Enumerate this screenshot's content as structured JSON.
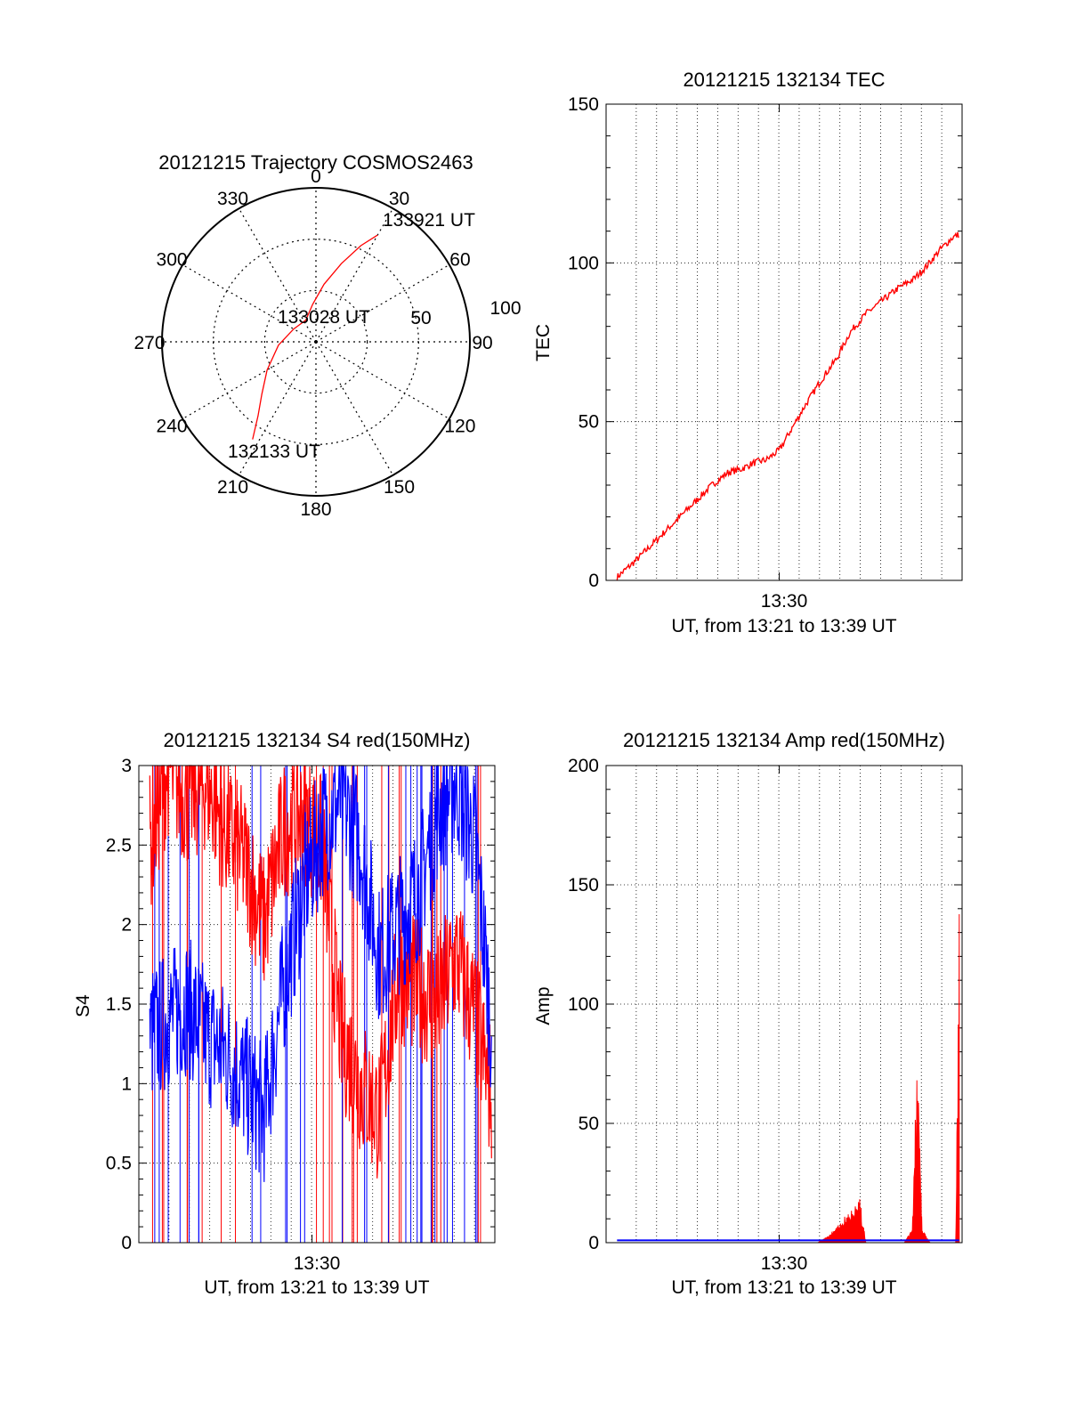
{
  "chart_data": [
    {
      "type": "polar",
      "title": "20121215 Trajectory COSMOS2463",
      "azimuth_labels": [
        "0",
        "30",
        "60",
        "90",
        "120",
        "150",
        "180",
        "210",
        "240",
        "270",
        "300",
        "330"
      ],
      "elevation_labels": [
        "50",
        "100"
      ],
      "track": {
        "color": "#ff0000",
        "start_label": "132133 UT",
        "mid_label": "133028 UT",
        "end_label": "133921 UT",
        "points_az_zen": [
          [
            213,
            68
          ],
          [
            218,
            55
          ],
          [
            226,
            44
          ],
          [
            240,
            33
          ],
          [
            265,
            22
          ],
          [
            300,
            15
          ],
          [
            335,
            14
          ],
          [
            355,
            22
          ],
          [
            8,
            34
          ],
          [
            18,
            48
          ],
          [
            25,
            62
          ],
          [
            30,
            72
          ]
        ]
      }
    },
    {
      "type": "line",
      "title": "20121215 132134 TEC",
      "ylabel": "TEC",
      "xlabel": "UT, from 13:21 to 13:39 UT",
      "x_tick_label": "13:30",
      "ylim": [
        0,
        150
      ],
      "y_ticks": [
        "0",
        "50",
        "100",
        "150"
      ],
      "series": [
        {
          "color": "#ff0000",
          "x": [
            "13:21:34",
            "13:22:30",
            "13:23:30",
            "13:24:30",
            "13:25:30",
            "13:26:30",
            "13:27:20",
            "13:28:00",
            "13:28:40",
            "13:29:20",
            "13:30:00",
            "13:30:40",
            "13:31:20",
            "13:32:10",
            "13:33:00",
            "13:33:40",
            "13:34:30",
            "13:35:20",
            "13:36:10",
            "13:37:00",
            "13:37:40",
            "13:38:20",
            "13:39:00",
            "13:39:21"
          ],
          "values": [
            1,
            6,
            12,
            18,
            24,
            30,
            34,
            35,
            37,
            38,
            41,
            48,
            55,
            63,
            70,
            78,
            84,
            88,
            92,
            95,
            99,
            104,
            108,
            109
          ]
        }
      ]
    },
    {
      "type": "line",
      "title": "20121215 132134 S4 red(150MHz)",
      "ylabel": "S4",
      "xlabel": "UT, from 13:21 to 13:39 UT",
      "x_tick_label": "13:30",
      "ylim": [
        0,
        3
      ],
      "y_ticks": [
        "0",
        "0.5",
        "1",
        "1.5",
        "2",
        "2.5",
        "3"
      ],
      "series": [
        {
          "color": "#0000ff",
          "x": [
            "13:21:34",
            "13:22:30",
            "13:23:30",
            "13:24:30",
            "13:25:30",
            "13:26:30",
            "13:27:30",
            "13:28:30",
            "13:29:30",
            "13:30:30",
            "13:31:30",
            "13:32:30",
            "13:33:30",
            "13:34:30",
            "13:35:30",
            "13:36:30",
            "13:37:30",
            "13:38:30",
            "13:39:21"
          ],
          "values": [
            1.3,
            1.4,
            1.5,
            1.3,
            1.2,
            1.0,
            0.8,
            1.6,
            2.2,
            2.6,
            2.8,
            2.5,
            1.8,
            2.0,
            2.2,
            2.7,
            2.9,
            2.5,
            1.3
          ]
        },
        {
          "color": "#ff0000",
          "x": [
            "13:21:34",
            "13:22:30",
            "13:23:30",
            "13:24:30",
            "13:25:30",
            "13:26:30",
            "13:27:30",
            "13:28:30",
            "13:29:30",
            "13:30:30",
            "13:31:30",
            "13:32:30",
            "13:33:30",
            "13:34:30",
            "13:35:30",
            "13:36:30",
            "13:37:30",
            "13:38:30",
            "13:39:21"
          ],
          "values": [
            2.5,
            3.0,
            2.8,
            2.9,
            2.6,
            2.4,
            2.0,
            2.6,
            2.7,
            2.5,
            1.3,
            1.0,
            0.8,
            1.7,
            1.6,
            1.5,
            1.8,
            1.4,
            0.9
          ]
        }
      ]
    },
    {
      "type": "area",
      "title": "20121215 132134 Amp red(150MHz)",
      "ylabel": "Amp",
      "xlabel": "UT, from 13:21 to 13:39 UT",
      "x_tick_label": "13:30",
      "ylim": [
        0,
        200
      ],
      "y_ticks": [
        "0",
        "50",
        "100",
        "150",
        "200"
      ],
      "series": [
        {
          "color": "#0000ff",
          "x": [
            "13:21:34",
            "13:39:21"
          ],
          "values": [
            1,
            1
          ]
        },
        {
          "color": "#ff0000",
          "x": [
            "13:21:34",
            "13:32:00",
            "13:32:40",
            "13:33:20",
            "13:34:00",
            "13:34:10",
            "13:34:30",
            "13:36:30",
            "13:36:55",
            "13:37:10",
            "13:37:25",
            "13:37:50",
            "13:39:10",
            "13:39:21"
          ],
          "values": [
            0,
            0,
            3,
            9,
            14,
            17,
            0,
            0,
            5,
            76,
            5,
            0,
            0,
            120
          ]
        }
      ]
    }
  ]
}
